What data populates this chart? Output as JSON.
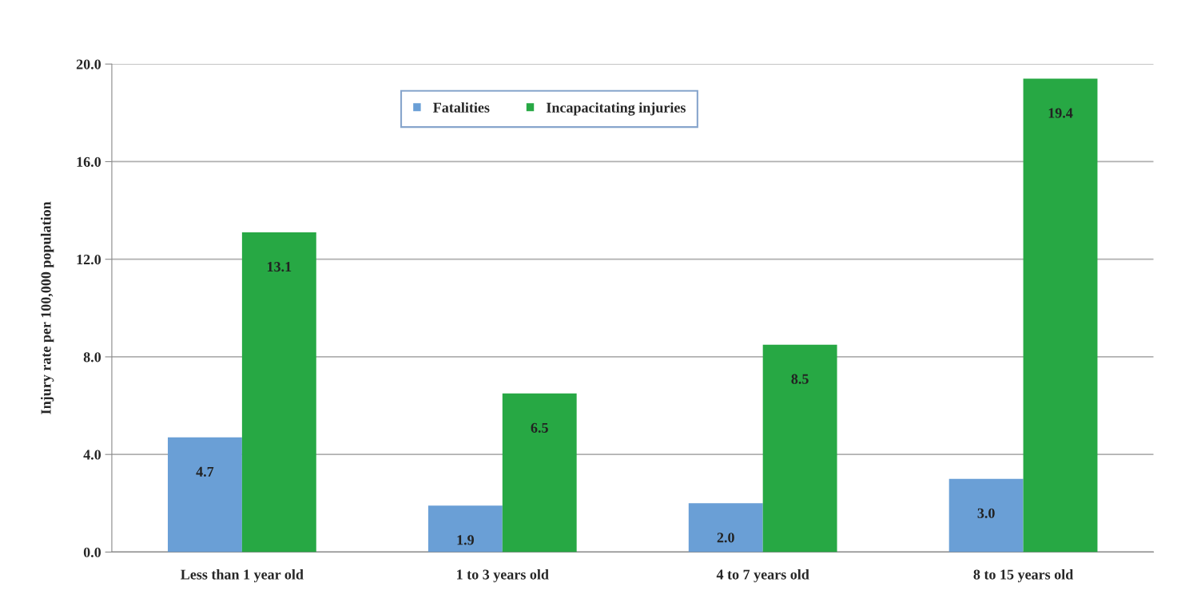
{
  "chart_data": {
    "type": "bar",
    "ylabel": "Injury rate per 100,000 population",
    "categories": [
      "Less than 1 year old",
      "1 to 3 years old",
      "4 to 7 years old",
      "8 to 15 years old"
    ],
    "series": [
      {
        "name": "Fatalities",
        "color": "#6a9fd6",
        "values": [
          4.7,
          1.9,
          2.0,
          3.0
        ],
        "value_labels": [
          "4.7",
          "1.9",
          "2.0",
          "3.0"
        ]
      },
      {
        "name": "Incapacitating injuries",
        "color": "#27a844",
        "values": [
          13.1,
          6.5,
          8.5,
          19.4
        ],
        "value_labels": [
          "13.1",
          "6.5",
          "8.5",
          "19.4"
        ]
      }
    ],
    "ylim": [
      0,
      20
    ],
    "yticks": [
      {
        "value": 0,
        "label": "0.0"
      },
      {
        "value": 4,
        "label": "4.0"
      },
      {
        "value": 8,
        "label": "8.0"
      },
      {
        "value": 12,
        "label": "12.0"
      },
      {
        "value": 16,
        "label": "16.0"
      },
      {
        "value": 20,
        "label": "20.0"
      }
    ],
    "grid": "y",
    "legend": "top"
  }
}
